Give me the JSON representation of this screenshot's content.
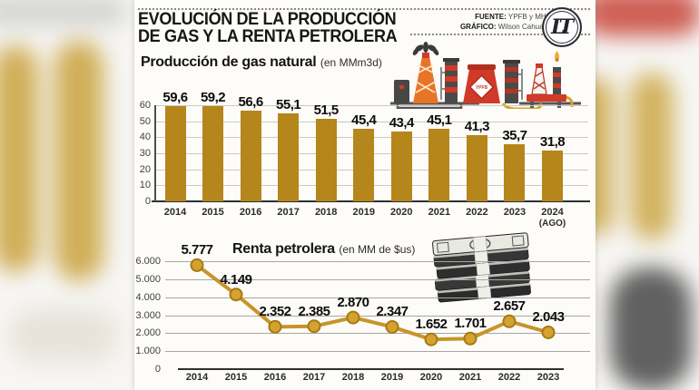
{
  "header": {
    "title_line1": "EVOLUCIÓN DE LA PRODUCCIÓN",
    "title_line2": "DE GAS Y LA RENTA PETROLERA",
    "source_label": "FUENTE:",
    "source_value": "YPFB y MHE",
    "credit_label": "GRÁFICO:",
    "credit_value": "Wilson Cahuaya",
    "logo_text": "LT"
  },
  "colors": {
    "bar_gold": "#b5861b",
    "line_gold": "#c8942a",
    "marker_fill": "#d5a22f",
    "marker_stroke": "#a57a12",
    "axis_dark": "#2f2f2f",
    "grid_light": "#ccc9c2",
    "grid_mid": "#a8a6a0",
    "illustration_red": "#d03a28",
    "illustration_orange": "#e87427"
  },
  "chart_data": [
    {
      "type": "bar",
      "title": "Producción de gas natural",
      "unit": "(en MMm3d)",
      "categories": [
        "2014",
        "2015",
        "2016",
        "2017",
        "2018",
        "2019",
        "2020",
        "2021",
        "2022",
        "2023",
        "2024"
      ],
      "last_category_note": "(AGO)",
      "values": [
        59.6,
        59.2,
        56.6,
        55.1,
        51.5,
        45.4,
        43.4,
        45.1,
        41.3,
        35.7,
        31.8
      ],
      "value_labels": [
        "59,6",
        "59,2",
        "56,6",
        "55,1",
        "51,5",
        "45,4",
        "43,4",
        "45,1",
        "41,3",
        "35,7",
        "31,8"
      ],
      "ylim": [
        0,
        60
      ],
      "yticks": [
        0,
        10,
        20,
        30,
        40,
        50,
        60
      ],
      "ytick_labels": [
        "0",
        "10",
        "20",
        "30",
        "40",
        "50",
        "60"
      ],
      "grid": true,
      "legend": "none"
    },
    {
      "type": "line",
      "title": "Renta petrolera",
      "unit": "(en MM de $us)",
      "categories": [
        "2014",
        "2015",
        "2016",
        "2017",
        "2018",
        "2019",
        "2020",
        "2021",
        "2022",
        "2023"
      ],
      "values": [
        5777,
        4149,
        2352,
        2385,
        2870,
        2347,
        1652,
        1701,
        2657,
        2043
      ],
      "value_labels": [
        "5.777",
        "4.149",
        "2.352",
        "2.385",
        "2.870",
        "2.347",
        "1.652",
        "1.701",
        "2.657",
        "2.043"
      ],
      "ylim": [
        0,
        6000
      ],
      "yticks": [
        0,
        1000,
        2000,
        3000,
        4000,
        5000,
        6000
      ],
      "ytick_labels": [
        "0",
        "1.000",
        "2.000",
        "3.000",
        "4.000",
        "5.000",
        "6.000"
      ],
      "grid": true,
      "legend": "none"
    }
  ]
}
